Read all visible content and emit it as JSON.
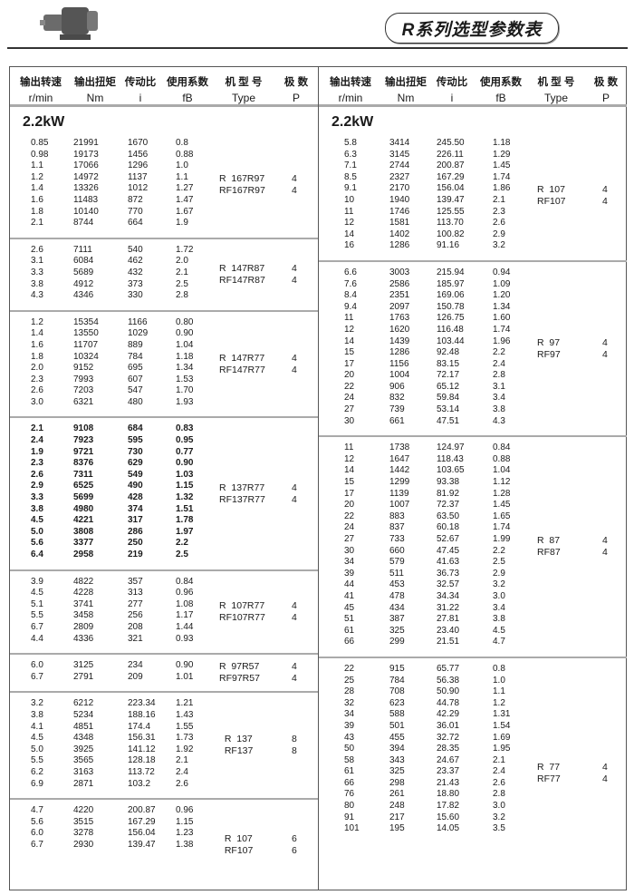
{
  "header": {
    "title": "R系列选型参数表"
  },
  "columns": [
    {
      "cn": "输出转速",
      "unit": "r/min"
    },
    {
      "cn": "输出扭矩",
      "unit": "Nm"
    },
    {
      "cn": "传动比",
      "unit": "i"
    },
    {
      "cn": "使用系数",
      "unit": "fB"
    },
    {
      "cn": "机 型 号",
      "unit": "Type"
    },
    {
      "cn": "极  数",
      "unit": "P"
    }
  ],
  "left": {
    "power": "2.2kW",
    "groups": [
      {
        "bold": false,
        "types": [
          "R  167R97",
          "RF167R97"
        ],
        "poles": [
          "4",
          "4"
        ],
        "rows": [
          [
            "0.85",
            "21991",
            "1670",
            "0.8"
          ],
          [
            "0.98",
            "19173",
            "1456",
            "0.88"
          ],
          [
            "1.1",
            "17066",
            "1296",
            "1.0"
          ],
          [
            "1.2",
            "14972",
            "1137",
            "1.1"
          ],
          [
            "1.4",
            "13326",
            "1012",
            "1.27"
          ],
          [
            "1.6",
            "11483",
            "872",
            "1.47"
          ],
          [
            "1.8",
            "10140",
            "770",
            "1.67"
          ],
          [
            "2.1",
            "8744",
            "664",
            "1.9"
          ]
        ]
      },
      {
        "bold": false,
        "types": [
          "R  147R87",
          "RF147R87"
        ],
        "poles": [
          "4",
          "4"
        ],
        "rows": [
          [
            "2.6",
            "7111",
            "540",
            "1.72"
          ],
          [
            "3.1",
            "6084",
            "462",
            "2.0"
          ],
          [
            "3.3",
            "5689",
            "432",
            "2.1"
          ],
          [
            "3.8",
            "4912",
            "373",
            "2.5"
          ],
          [
            "4.3",
            "4346",
            "330",
            "2.8"
          ]
        ]
      },
      {
        "bold": false,
        "types": [
          "R  147R77",
          "RF147R77"
        ],
        "poles": [
          "4",
          "4"
        ],
        "rows": [
          [
            "1.2",
            "15354",
            "1166",
            "0.80"
          ],
          [
            "1.4",
            "13550",
            "1029",
            "0.90"
          ],
          [
            "1.6",
            "11707",
            "889",
            "1.04"
          ],
          [
            "1.8",
            "10324",
            "784",
            "1.18"
          ],
          [
            "2.0",
            "9152",
            "695",
            "1.34"
          ],
          [
            "2.3",
            "7993",
            "607",
            "1.53"
          ],
          [
            "2.6",
            "7203",
            "547",
            "1.70"
          ],
          [
            "3.0",
            "6321",
            "480",
            "1.93"
          ]
        ]
      },
      {
        "bold": true,
        "types": [
          "R  137R77",
          "RF137R77"
        ],
        "poles": [
          "4",
          "4"
        ],
        "rows": [
          [
            "2.1",
            "9108",
            "684",
            "0.83"
          ],
          [
            "2.4",
            "7923",
            "595",
            "0.95"
          ],
          [
            "1.9",
            "9721",
            "730",
            "0.77"
          ],
          [
            "2.3",
            "8376",
            "629",
            "0.90"
          ],
          [
            "2.6",
            "7311",
            "549",
            "1.03"
          ],
          [
            "2.9",
            "6525",
            "490",
            "1.15"
          ],
          [
            "3.3",
            "5699",
            "428",
            "1.32"
          ],
          [
            "3.8",
            "4980",
            "374",
            "1.51"
          ],
          [
            "4.5",
            "4221",
            "317",
            "1.78"
          ],
          [
            "5.0",
            "3808",
            "286",
            "1.97"
          ],
          [
            "5.6",
            "3377",
            "250",
            "2.2"
          ],
          [
            "6.4",
            "2958",
            "219",
            "2.5"
          ]
        ]
      },
      {
        "bold": false,
        "types": [
          "R  107R77",
          "RF107R77"
        ],
        "poles": [
          "4",
          "4"
        ],
        "rows": [
          [
            "3.9",
            "4822",
            "357",
            "0.84"
          ],
          [
            "4.5",
            "4228",
            "313",
            "0.96"
          ],
          [
            "5.1",
            "3741",
            "277",
            "1.08"
          ],
          [
            "5.5",
            "3458",
            "256",
            "1.17"
          ],
          [
            "6.7",
            "2809",
            "208",
            "1.44"
          ],
          [
            "4.4",
            "4336",
            "321",
            "0.93"
          ]
        ]
      },
      {
        "bold": false,
        "types": [
          "R  97R57",
          "RF97R57"
        ],
        "poles": [
          "4",
          "4"
        ],
        "rows": [
          [
            "6.0",
            "3125",
            "234",
            "0.90"
          ],
          [
            "6.7",
            "2791",
            "209",
            "1.01"
          ]
        ]
      },
      {
        "bold": false,
        "types": [
          "  R  137",
          "  RF137"
        ],
        "poles": [
          "8",
          "8"
        ],
        "rows": [
          [
            "3.2",
            "6212",
            "223.34",
            "1.21"
          ],
          [
            "3.8",
            "5234",
            "188.16",
            "1.43"
          ],
          [
            "4.1",
            "4851",
            "174.4",
            "1.55"
          ],
          [
            "4.5",
            "4348",
            "156.31",
            "1.73"
          ],
          [
            "5.0",
            "3925",
            "141.12",
            "1.92"
          ],
          [
            "5.5",
            "3565",
            "128.18",
            "2.1"
          ],
          [
            "6.2",
            "3163",
            "113.72",
            "2.4"
          ],
          [
            "6.9",
            "2871",
            "103.2",
            "2.6"
          ]
        ]
      },
      {
        "bold": false,
        "types": [
          "  R  107",
          "  RF107"
        ],
        "poles": [
          "6",
          "6"
        ],
        "rows": [
          [
            "4.7",
            "4220",
            "200.87",
            "0.96"
          ],
          [
            "5.6",
            "3515",
            "167.29",
            "1.15"
          ],
          [
            "6.0",
            "3278",
            "156.04",
            "1.23"
          ],
          [
            "6.7",
            "2930",
            "139.47",
            "1.38"
          ]
        ]
      }
    ]
  },
  "right": {
    "power": "2.2kW",
    "groups": [
      {
        "bold": false,
        "types": [
          "R  107",
          "RF107"
        ],
        "poles": [
          "4",
          "4"
        ],
        "rows": [
          [
            "5.8",
            "3414",
            "245.50",
            "1.18"
          ],
          [
            "6.3",
            "3145",
            "226.11",
            "1.29"
          ],
          [
            "7.1",
            "2744",
            "200.87",
            "1.45"
          ],
          [
            "8.5",
            "2327",
            "167.29",
            "1.74"
          ],
          [
            "9.1",
            "2170",
            "156.04",
            "1.86"
          ],
          [
            "10",
            "1940",
            "139.47",
            "2.1"
          ],
          [
            "11",
            "1746",
            "125.55",
            "2.3"
          ],
          [
            "12",
            "1581",
            "113.70",
            "2.6"
          ],
          [
            "14",
            "1402",
            "100.82",
            "2.9"
          ],
          [
            "16",
            "1286",
            "91.16",
            "3.2"
          ]
        ]
      },
      {
        "bold": false,
        "types": [
          "R  97",
          "RF97"
        ],
        "poles": [
          "4",
          "4"
        ],
        "rows": [
          [
            "6.6",
            "3003",
            "215.94",
            "0.94"
          ],
          [
            "7.6",
            "2586",
            "185.97",
            "1.09"
          ],
          [
            "8.4",
            "2351",
            "169.06",
            "1.20"
          ],
          [
            "9.4",
            "2097",
            "150.78",
            "1.34"
          ],
          [
            "11",
            "1763",
            "126.75",
            "1.60"
          ],
          [
            "12",
            "1620",
            "116.48",
            "1.74"
          ],
          [
            "14",
            "1439",
            "103.44",
            "1.96"
          ],
          [
            "15",
            "1286",
            "92.48",
            "2.2"
          ],
          [
            "17",
            "1156",
            "83.15",
            "2.4"
          ],
          [
            "20",
            "1004",
            "72.17",
            "2.8"
          ],
          [
            "22",
            "906",
            "65.12",
            "3.1"
          ],
          [
            "24",
            "832",
            "59.84",
            "3.4"
          ],
          [
            "27",
            "739",
            "53.14",
            "3.8"
          ],
          [
            "30",
            "661",
            "47.51",
            "4.3"
          ]
        ]
      },
      {
        "bold": false,
        "types": [
          "R  87",
          "RF87"
        ],
        "poles": [
          "4",
          "4"
        ],
        "rows": [
          [
            "11",
            "1738",
            "124.97",
            "0.84"
          ],
          [
            "12",
            "1647",
            "118.43",
            "0.88"
          ],
          [
            "14",
            "1442",
            "103.65",
            "1.04"
          ],
          [
            "15",
            "1299",
            "93.38",
            "1.12"
          ],
          [
            "17",
            "1139",
            "81.92",
            "1.28"
          ],
          [
            "20",
            "1007",
            "72.37",
            "1.45"
          ],
          [
            "22",
            "883",
            "63.50",
            "1.65"
          ],
          [
            "24",
            "837",
            "60.18",
            "1.74"
          ],
          [
            "27",
            "733",
            "52.67",
            "1.99"
          ],
          [
            "30",
            "660",
            "47.45",
            "2.2"
          ],
          [
            "34",
            "579",
            "41.63",
            "2.5"
          ],
          [
            "39",
            "511",
            "36.73",
            "2.9"
          ],
          [
            "44",
            "453",
            "32.57",
            "3.2"
          ],
          [
            "41",
            "478",
            "34.34",
            "3.0"
          ],
          [
            "45",
            "434",
            "31.22",
            "3.4"
          ],
          [
            "51",
            "387",
            "27.81",
            "3.8"
          ],
          [
            "61",
            "325",
            "23.40",
            "4.5"
          ],
          [
            "66",
            "299",
            "21.51",
            "4.7"
          ]
        ]
      },
      {
        "bold": false,
        "types": [
          "R  77",
          "RF77"
        ],
        "poles": [
          "4",
          "4"
        ],
        "rows": [
          [
            "22",
            "915",
            "65.77",
            "0.8"
          ],
          [
            "25",
            "784",
            "56.38",
            "1.0"
          ],
          [
            "28",
            "708",
            "50.90",
            "1.1"
          ],
          [
            "32",
            "623",
            "44.78",
            "1.2"
          ],
          [
            "34",
            "588",
            "42.29",
            "1.31"
          ],
          [
            "39",
            "501",
            "36.01",
            "1.54"
          ],
          [
            "43",
            "455",
            "32.72",
            "1.69"
          ],
          [
            "50",
            "394",
            "28.35",
            "1.95"
          ],
          [
            "58",
            "343",
            "24.67",
            "2.1"
          ],
          [
            "61",
            "325",
            "23.37",
            "2.4"
          ],
          [
            "66",
            "298",
            "21.43",
            "2.6"
          ],
          [
            "76",
            "261",
            "18.80",
            "2.8"
          ],
          [
            "80",
            "248",
            "17.82",
            "3.0"
          ],
          [
            "91",
            "217",
            "15.60",
            "3.2"
          ],
          [
            "101",
            "195",
            "14.05",
            "3.5"
          ]
        ]
      }
    ]
  }
}
